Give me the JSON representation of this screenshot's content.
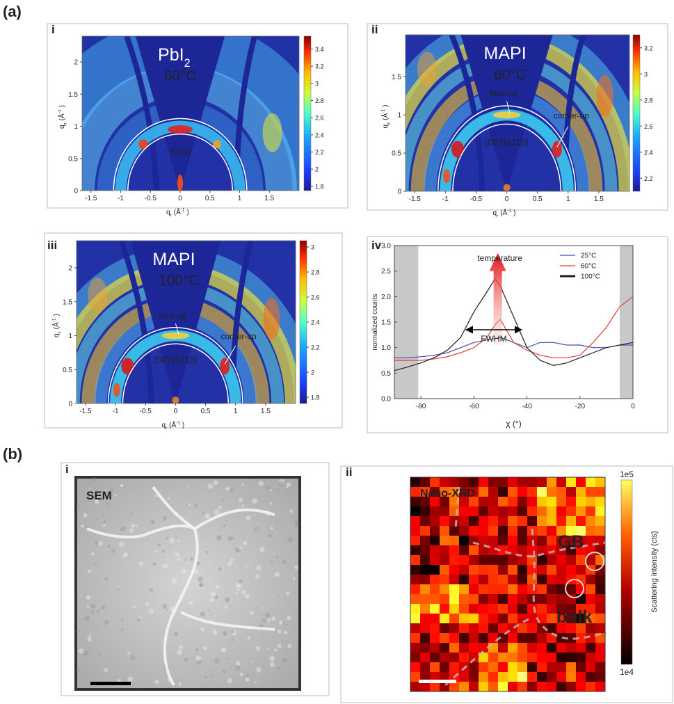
{
  "figure_labels": {
    "a": "(a)",
    "b": "(b)"
  },
  "gixd_panels": [
    {
      "label": "i",
      "title": [
        {
          "text": "PbI"
        },
        {
          "text": "2",
          "shift": "sub"
        }
      ],
      "temperature": "60°C",
      "peak": "(001)",
      "xlim": [
        -1.65,
        2.0
      ],
      "ylim": [
        0,
        2.4
      ],
      "xticks": [
        -1.5,
        -1,
        -0.5,
        0,
        0.5,
        1,
        1.5
      ],
      "yticks": [
        0,
        0.5,
        1,
        1.5,
        2
      ],
      "x_label": [
        {
          "text": "q"
        },
        {
          "text": "r",
          "shift": "sub"
        },
        {
          "text": "(Å"
        },
        {
          "text": "-1",
          "shift": "sup"
        },
        {
          "text": ")"
        }
      ],
      "y_label": [
        {
          "text": "q"
        },
        {
          "text": "z",
          "shift": "sub"
        },
        {
          "text": "(Å"
        },
        {
          "text": "-1",
          "shift": "sup"
        },
        {
          "text": ")"
        }
      ],
      "colorbar": {
        "lim": [
          1.75,
          3.55
        ],
        "ticks": [
          1.8,
          2,
          2.2,
          2.4,
          2.6,
          2.8,
          3,
          3.2,
          3.4
        ]
      }
    },
    {
      "label": "ii",
      "title": [
        {
          "text": "MAPI"
        }
      ],
      "temperature": "60°C",
      "peak": "(002)/(110)",
      "face": "face-up",
      "corner": "corner-up",
      "xlim": [
        -1.65,
        2.0
      ],
      "ylim": [
        0,
        2.05
      ],
      "xticks": [
        -1.5,
        -1,
        -0.5,
        0,
        0.5,
        1,
        1.5
      ],
      "yticks": [
        0,
        0.5,
        1,
        1.5
      ],
      "x_label": [
        {
          "text": "q"
        },
        {
          "text": "r",
          "shift": "sub"
        },
        {
          "text": "(Å"
        },
        {
          "text": "-1",
          "shift": "sup"
        },
        {
          "text": ")"
        }
      ],
      "y_label": [
        {
          "text": "q"
        },
        {
          "text": "z",
          "shift": "sub"
        },
        {
          "text": "(Å"
        },
        {
          "text": "-1",
          "shift": "sup"
        },
        {
          "text": ")"
        }
      ],
      "colorbar": {
        "lim": [
          2.1,
          3.3
        ],
        "ticks": [
          2.2,
          2.4,
          2.6,
          2.8,
          3,
          3.2
        ]
      }
    },
    {
      "label": "iii",
      "title": [
        {
          "text": "MAPI"
        }
      ],
      "temperature": "100°C",
      "peak": "(002)/(110)",
      "face": "face-up",
      "corner": "corner-up",
      "xlim": [
        -1.65,
        2.0
      ],
      "ylim": [
        0,
        2.4
      ],
      "xticks": [
        -1.5,
        -1,
        -0.5,
        0,
        0.5,
        1,
        1.5
      ],
      "yticks": [
        0,
        0.5,
        1,
        1.5,
        2
      ],
      "x_label": [
        {
          "text": "q"
        },
        {
          "text": "r",
          "shift": "sub"
        },
        {
          "text": "(Å"
        },
        {
          "text": "-1",
          "shift": "sup"
        },
        {
          "text": ")"
        }
      ],
      "y_label": [
        {
          "text": "q"
        },
        {
          "text": "z",
          "shift": "sub"
        },
        {
          "text": "(Å"
        },
        {
          "text": "-1",
          "shift": "sup"
        },
        {
          "text": ")"
        }
      ],
      "colorbar": {
        "lim": [
          1.75,
          3.05
        ],
        "ticks": [
          1.8,
          2,
          2.2,
          2.4,
          2.6,
          2.8,
          3
        ]
      }
    }
  ],
  "chart_data": {
    "type": "line",
    "label": "iv",
    "x_label": "χ (°)",
    "y_label": "normalized counts",
    "annotation_arrow": "temperature",
    "annotation_width": "FWHM",
    "x": [
      -90,
      -85,
      -80,
      -75,
      -70,
      -65,
      -60,
      -55,
      -52,
      -50,
      -45,
      -40,
      -35,
      -30,
      -25,
      -20,
      -15,
      -10,
      -5,
      0
    ],
    "series": [
      {
        "name": "25°C",
        "color": "#3a4fb8",
        "values": [
          0.8,
          0.8,
          0.82,
          0.85,
          0.9,
          1.0,
          1.1,
          1.15,
          1.18,
          1.2,
          1.1,
          1.0,
          1.1,
          1.1,
          1.05,
          1.05,
          1.0,
          1.0,
          1.05,
          1.05
        ]
      },
      {
        "name": "60°C",
        "color": "#e03a3a",
        "values": [
          0.75,
          0.75,
          0.75,
          0.78,
          0.82,
          0.9,
          1.0,
          1.2,
          1.45,
          1.55,
          1.1,
          0.95,
          0.85,
          0.8,
          0.8,
          0.85,
          1.1,
          1.4,
          1.8,
          2.0
        ]
      },
      {
        "name": "100°C",
        "color": "#1e1e1e",
        "values": [
          0.55,
          0.62,
          0.7,
          0.8,
          0.95,
          1.2,
          1.7,
          2.1,
          2.35,
          2.2,
          1.6,
          1.0,
          0.75,
          0.65,
          0.7,
          0.8,
          0.9,
          1.0,
          1.05,
          1.1
        ]
      }
    ],
    "shaded_regions": [
      [
        -90,
        -81
      ],
      [
        -5,
        0
      ]
    ],
    "fwhm_range": [
      -63,
      -42
    ],
    "xlim": [
      -90,
      0
    ],
    "ylim": [
      0,
      3
    ],
    "xticks": [
      -80,
      -60,
      -40,
      -20,
      0
    ],
    "yticks": [
      {
        "value": 0,
        "label": "0.0"
      },
      0.5,
      {
        "value": 1,
        "label": "1.0"
      },
      1.5,
      {
        "value": 2,
        "label": "2.0"
      },
      2.5,
      {
        "value": 3,
        "label": "3.0"
      }
    ],
    "legend": "top-right"
  },
  "sem_panel": {
    "label": "i",
    "tag": "SEM"
  },
  "xrd_panel": {
    "label": "ii",
    "tag": "Nano-XRD",
    "gb": "GB",
    "bulk": "bulk",
    "colorbar": {
      "top": "1e5",
      "bottom": "1e4",
      "title": "Scattering intensity (cts)"
    }
  }
}
